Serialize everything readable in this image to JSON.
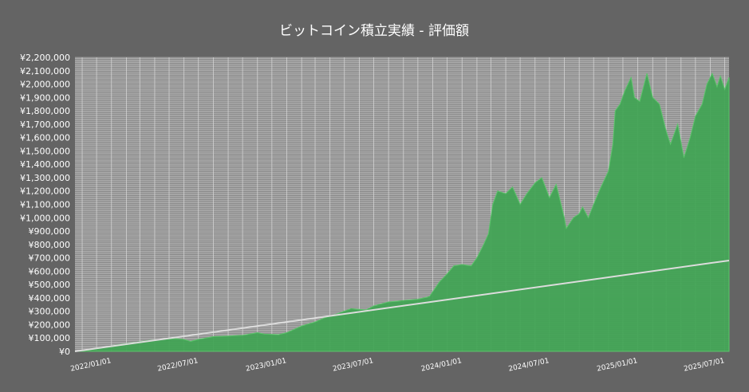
{
  "chart_data": {
    "type": "area",
    "title": "ビットコイン積立実績  -  評価額",
    "xlabel": "",
    "ylabel": "",
    "ylim": [
      0,
      2200000
    ],
    "xlim": [
      "2021-10-17",
      "2025-07-10"
    ],
    "y_ticks": [
      "¥0",
      "¥100,000",
      "¥200,000",
      "¥300,000",
      "¥400,000",
      "¥500,000",
      "¥600,000",
      "¥700,000",
      "¥800,000",
      "¥900,000",
      "¥1,000,000",
      "¥1,100,000",
      "¥1,200,000",
      "¥1,300,000",
      "¥1,400,000",
      "¥1,500,000",
      "¥1,600,000",
      "¥1,700,000",
      "¥1,800,000",
      "¥1,900,000",
      "¥2,000,000",
      "¥2,100,000",
      "¥2,200,000"
    ],
    "x_ticks": [
      "2022/01/01",
      "2022/07/01",
      "2023/01/01",
      "2023/07/01",
      "2024/01/01",
      "2024/07/01",
      "2025/01/01",
      "2025/07/01"
    ],
    "grid": true,
    "colors": {
      "background": "#646464",
      "plot_background": "#888888",
      "grid": "#d8d8d8",
      "area_fill": "#3fa452",
      "area_stroke": "#5cc46b",
      "line": "#dcdcdc"
    },
    "series": [
      {
        "kind": "area",
        "x": [
          "2021-10-17",
          "2021-11-15",
          "2021-12-15",
          "2022-01-15",
          "2022-02-15",
          "2022-03-15",
          "2022-04-15",
          "2022-05-15",
          "2022-05-31",
          "2022-06-15",
          "2022-07-01",
          "2022-08-01",
          "2022-09-01",
          "2022-10-01",
          "2022-11-01",
          "2022-11-15",
          "2022-12-15",
          "2023-01-01",
          "2023-02-01",
          "2023-03-01",
          "2023-03-20",
          "2023-04-15",
          "2023-05-15",
          "2023-06-15",
          "2023-07-01",
          "2023-08-01",
          "2023-09-01",
          "2023-10-01",
          "2023-10-25",
          "2023-11-15",
          "2023-12-01",
          "2023-12-15",
          "2024-01-01",
          "2024-01-20",
          "2024-02-01",
          "2024-02-15",
          "2024-02-25",
          "2024-03-05",
          "2024-03-15",
          "2024-04-01",
          "2024-04-15",
          "2024-05-01",
          "2024-05-15",
          "2024-06-01",
          "2024-06-15",
          "2024-07-01",
          "2024-07-15",
          "2024-08-01",
          "2024-08-05",
          "2024-08-20",
          "2024-09-01",
          "2024-09-08",
          "2024-09-20",
          "2024-10-01",
          "2024-10-15",
          "2024-11-01",
          "2024-11-10",
          "2024-11-15",
          "2024-11-25",
          "2024-12-05",
          "2024-12-18",
          "2024-12-25",
          "2025-01-05",
          "2025-01-20",
          "2025-02-01",
          "2025-02-15",
          "2025-03-01",
          "2025-03-10",
          "2025-03-25",
          "2025-04-07",
          "2025-04-20",
          "2025-05-01",
          "2025-05-15",
          "2025-05-25",
          "2025-06-05",
          "2025-06-15",
          "2025-06-22",
          "2025-07-01",
          "2025-07-10"
        ],
        "values": [
          0,
          10000,
          30000,
          50000,
          65000,
          80000,
          90000,
          95000,
          90000,
          75000,
          90000,
          110000,
          115000,
          120000,
          140000,
          130000,
          125000,
          140000,
          190000,
          220000,
          250000,
          280000,
          320000,
          310000,
          340000,
          370000,
          380000,
          390000,
          410000,
          520000,
          580000,
          640000,
          650000,
          640000,
          700000,
          800000,
          880000,
          1100000,
          1200000,
          1180000,
          1230000,
          1100000,
          1180000,
          1260000,
          1300000,
          1150000,
          1250000,
          1000000,
          920000,
          1000000,
          1030000,
          1080000,
          1000000,
          1100000,
          1220000,
          1350000,
          1550000,
          1800000,
          1850000,
          1950000,
          2050000,
          1900000,
          1870000,
          2080000,
          1900000,
          1850000,
          1650000,
          1550000,
          1700000,
          1450000,
          1600000,
          1760000,
          1850000,
          2000000,
          2080000,
          1980000,
          2060000,
          1960000,
          2050000
        ]
      },
      {
        "kind": "line",
        "x": [
          "2021-10-17",
          "2025-07-10"
        ],
        "values": [
          0,
          680000
        ]
      }
    ]
  }
}
